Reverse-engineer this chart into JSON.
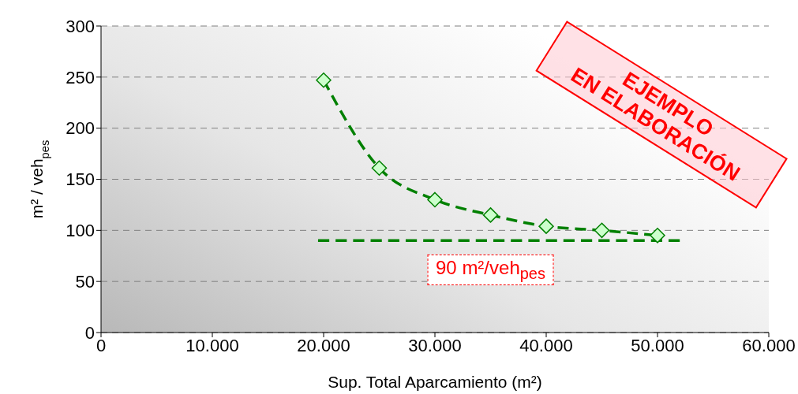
{
  "chart_data": {
    "type": "line",
    "xlabel": "Sup. Total Aparcamiento (m²)",
    "ylabel": "m² / veh$_{pes}$",
    "xlim": [
      0,
      60000
    ],
    "xticks": [
      0,
      {
        "value": 10000,
        "label": "10.000"
      },
      {
        "value": 20000,
        "label": "20.000"
      },
      {
        "value": 30000,
        "label": "30.000"
      },
      {
        "value": 40000,
        "label": "40.000"
      },
      {
        "value": 50000,
        "label": "50.000"
      },
      {
        "value": 60000,
        "label": "60.000"
      }
    ],
    "ylim": [
      0,
      300
    ],
    "yticks": [
      0,
      50,
      100,
      150,
      200,
      250,
      300
    ],
    "grid": "y",
    "series": [
      {
        "color": "#008000",
        "marker": "diamond",
        "line_style": "dashed",
        "x": [
          20000,
          25000,
          30000,
          35000,
          40000,
          45000,
          50000
        ],
        "values": [
          247,
          161,
          130,
          115,
          104,
          100,
          95
        ]
      },
      {
        "color": "#008000",
        "marker": "none",
        "line_style": "dashed",
        "x": [
          19500,
          52000
        ],
        "values": [
          90,
          90
        ]
      }
    ],
    "annotations": [
      {
        "text": "90 m²/veh$_{pes}$",
        "x": 35000,
        "y": 90
      },
      "EJEMPLO\nEN ELABORACIÓN"
    ]
  }
}
